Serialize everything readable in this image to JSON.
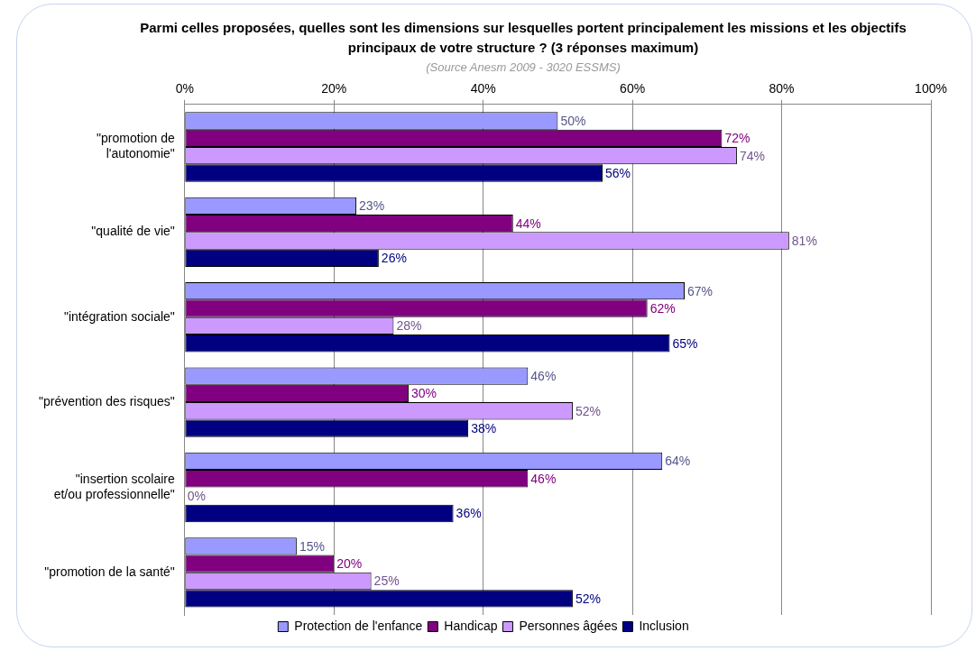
{
  "chart_data": {
    "type": "bar",
    "orientation": "horizontal",
    "title": "Parmi celles proposées, quelles sont les dimensions sur lesquelles portent principalement les missions et les objectifs principaux de votre structure ? (3 réponses maximum)",
    "subtitle": "(Source Anesm 2009 - 3020 ESSMS)",
    "categories": [
      "\"promotion de l'autonomie\"",
      "\"qualité de vie\"",
      "\"intégration sociale\"",
      "\"prévention des risques\"",
      "\"insertion scolaire et/ou professionnelle\"",
      "\"promotion de la santé\""
    ],
    "series": [
      {
        "name": "Protection de l'enfance",
        "color": "#9999ff",
        "values": [
          50,
          23,
          67,
          46,
          64,
          15
        ],
        "value_labels": [
          "50%",
          "23%",
          "67%",
          "46%",
          "64%",
          "15%"
        ]
      },
      {
        "name": "Handicap",
        "color": "#800080",
        "values": [
          72,
          44,
          62,
          30,
          46,
          20
        ],
        "value_labels": [
          "72%",
          "44%",
          "62%",
          "30%",
          "46%",
          "20%"
        ]
      },
      {
        "name": "Personnes âgées",
        "color": "#cc99ff",
        "values": [
          74,
          81,
          28,
          52,
          0,
          25
        ],
        "value_labels": [
          "74%",
          "81%",
          "28%",
          "52%",
          "0%",
          "25%"
        ]
      },
      {
        "name": "Inclusion",
        "color": "#000080",
        "values": [
          56,
          26,
          65,
          38,
          36,
          52
        ],
        "value_labels": [
          "56%",
          "26%",
          "65%",
          "38%",
          "36%",
          "52%"
        ]
      }
    ],
    "xlim": [
      0,
      100
    ],
    "xticks": [
      {
        "value": 0,
        "label": "0%"
      },
      {
        "value": 20,
        "label": "20%"
      },
      {
        "value": 40,
        "label": "40%"
      },
      {
        "value": 60,
        "label": "60%"
      },
      {
        "value": 80,
        "label": "80%"
      },
      {
        "value": 100,
        "label": "100%"
      }
    ],
    "grid": "x",
    "legend": "bottom"
  }
}
